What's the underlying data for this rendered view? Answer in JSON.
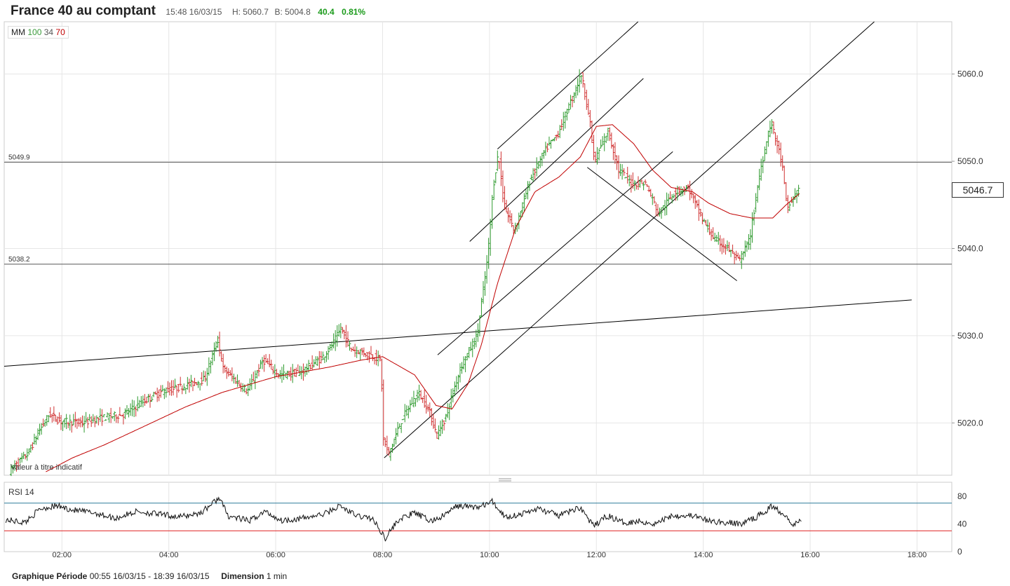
{
  "header": {
    "title": "France 40 au comptant",
    "datetime": "15:48 16/03/15",
    "high": "H: 5060.7",
    "low": "B: 5004.8",
    "change": "40.4",
    "change_pct": "0.81%"
  },
  "ma_legend": {
    "label": "MM",
    "p1": "100",
    "p2": "34",
    "p3": "70"
  },
  "disclaimer": "Valeur à titre indicatif",
  "rsi_label": "RSI  14",
  "current_price": "5046.7",
  "footer": {
    "period_label": "Graphique Période",
    "period_value": "00:55 16/03/15 - 18:39 16/03/15",
    "dimension_label": "Dimension",
    "dimension_value": "1 min"
  },
  "colors": {
    "up": "#2e9a2e",
    "down": "#d03030",
    "ma": "#c00000",
    "rsi_upper": "#2e7a9a",
    "rsi_lower": "#e02020"
  },
  "chart_data": [
    {
      "type": "candlestick",
      "x_ticks": [
        "02:00",
        "04:00",
        "06:00",
        "08:00",
        "10:00",
        "12:00",
        "14:00",
        "16:00",
        "18:00"
      ],
      "y_ticks": [
        "5020.0",
        "5030.0",
        "5040.0",
        "5050.0",
        "5060.0"
      ],
      "ylim": [
        5014,
        5066
      ],
      "xlim_hours": [
        0.92,
        18.65
      ],
      "horizontal_levels": [
        {
          "label": "5049.9",
          "value": 5049.9
        },
        {
          "label": "5038.2",
          "value": 5038.2
        }
      ],
      "trendlines": [
        {
          "x1": 0.92,
          "y1": 5026.5,
          "x2": 17.9,
          "y2": 5034.1
        },
        {
          "x1": 10.15,
          "y1": 5051.4,
          "x2": 12.78,
          "y2": 5066.0
        },
        {
          "x1": 9.63,
          "y1": 5040.8,
          "x2": 12.88,
          "y2": 5059.5
        },
        {
          "x1": 9.03,
          "y1": 5027.8,
          "x2": 13.43,
          "y2": 5051.1
        },
        {
          "x1": 8.03,
          "y1": 5016.0,
          "x2": 17.2,
          "y2": 5066.0
        },
        {
          "x1": 11.83,
          "y1": 5049.3,
          "x2": 14.63,
          "y2": 5036.3
        }
      ],
      "price_keypoints": [
        [
          1.05,
          5014.5
        ],
        [
          1.4,
          5016.5
        ],
        [
          1.6,
          5019.0
        ],
        [
          1.8,
          5021.0
        ],
        [
          2.0,
          5020.2
        ],
        [
          2.4,
          5020.0
        ],
        [
          2.8,
          5020.6
        ],
        [
          3.2,
          5021.0
        ],
        [
          3.6,
          5022.6
        ],
        [
          3.9,
          5023.6
        ],
        [
          4.3,
          5024.2
        ],
        [
          4.7,
          5025.0
        ],
        [
          4.95,
          5029.5
        ],
        [
          5.05,
          5026.2
        ],
        [
          5.5,
          5023.6
        ],
        [
          5.8,
          5027.2
        ],
        [
          6.1,
          5025.5
        ],
        [
          6.5,
          5025.8
        ],
        [
          6.9,
          5027.5
        ],
        [
          7.1,
          5029.0
        ],
        [
          7.25,
          5030.8
        ],
        [
          7.45,
          5028.5
        ],
        [
          7.8,
          5027.8
        ],
        [
          8.0,
          5027.2
        ],
        [
          8.05,
          5018.0
        ],
        [
          8.15,
          5016.5
        ],
        [
          8.4,
          5020.5
        ],
        [
          8.7,
          5023.5
        ],
        [
          8.9,
          5021.5
        ],
        [
          9.05,
          5018.5
        ],
        [
          9.2,
          5020.5
        ],
        [
          9.5,
          5026.5
        ],
        [
          9.8,
          5030.0
        ],
        [
          10.0,
          5039.0
        ],
        [
          10.1,
          5047.0
        ],
        [
          10.2,
          5051.0
        ],
        [
          10.3,
          5045.0
        ],
        [
          10.5,
          5042.0
        ],
        [
          10.8,
          5048.0
        ],
        [
          11.1,
          5051.5
        ],
        [
          11.3,
          5053.0
        ],
        [
          11.6,
          5057.5
        ],
        [
          11.75,
          5060.0
        ],
        [
          11.9,
          5055.0
        ],
        [
          12.0,
          5050.0
        ],
        [
          12.25,
          5053.5
        ],
        [
          12.45,
          5049.0
        ],
        [
          12.7,
          5047.5
        ],
        [
          12.95,
          5047.5
        ],
        [
          13.2,
          5044.0
        ],
        [
          13.5,
          5046.5
        ],
        [
          13.75,
          5047.0
        ],
        [
          14.0,
          5043.5
        ],
        [
          14.25,
          5041.0
        ],
        [
          14.5,
          5040.0
        ],
        [
          14.7,
          5038.5
        ],
        [
          14.9,
          5041.0
        ],
        [
          15.1,
          5049.0
        ],
        [
          15.3,
          5054.5
        ],
        [
          15.5,
          5050.0
        ],
        [
          15.6,
          5044.5
        ],
        [
          15.8,
          5046.7
        ]
      ],
      "ma_keypoints": [
        [
          1.7,
          5014.4
        ],
        [
          2.2,
          5016.0
        ],
        [
          2.8,
          5017.5
        ],
        [
          3.5,
          5019.5
        ],
        [
          4.3,
          5021.8
        ],
        [
          5.0,
          5023.5
        ],
        [
          6.0,
          5025.3
        ],
        [
          7.0,
          5026.4
        ],
        [
          7.6,
          5027.2
        ],
        [
          8.0,
          5027.6
        ],
        [
          8.6,
          5025.5
        ],
        [
          9.0,
          5022.0
        ],
        [
          9.3,
          5021.6
        ],
        [
          9.6,
          5024.5
        ],
        [
          9.85,
          5029.0
        ],
        [
          10.15,
          5036.0
        ],
        [
          10.5,
          5042.5
        ],
        [
          10.85,
          5046.5
        ],
        [
          11.3,
          5048.2
        ],
        [
          11.7,
          5050.5
        ],
        [
          12.0,
          5054.0
        ],
        [
          12.3,
          5054.2
        ],
        [
          12.7,
          5052.0
        ],
        [
          13.05,
          5049.0
        ],
        [
          13.4,
          5047.0
        ],
        [
          13.8,
          5046.5
        ],
        [
          14.1,
          5045.2
        ],
        [
          14.5,
          5044.0
        ],
        [
          14.9,
          5043.5
        ],
        [
          15.3,
          5043.5
        ],
        [
          15.55,
          5045.0
        ],
        [
          15.8,
          5046.3
        ]
      ]
    },
    {
      "type": "line",
      "name_label": "RSI 14",
      "y_ticks": [
        "80",
        "40",
        "0"
      ],
      "ylim": [
        0,
        100
      ],
      "reference_levels": [
        70,
        30
      ],
      "keypoints": [
        [
          0.95,
          46
        ],
        [
          1.3,
          42
        ],
        [
          1.6,
          62
        ],
        [
          1.9,
          66
        ],
        [
          2.2,
          60
        ],
        [
          2.6,
          56
        ],
        [
          3.0,
          48
        ],
        [
          3.4,
          58
        ],
        [
          3.8,
          54
        ],
        [
          4.2,
          50
        ],
        [
          4.6,
          56
        ],
        [
          4.95,
          78
        ],
        [
          5.1,
          52
        ],
        [
          5.5,
          44
        ],
        [
          5.8,
          58
        ],
        [
          6.1,
          45
        ],
        [
          6.5,
          48
        ],
        [
          6.9,
          54
        ],
        [
          7.2,
          66
        ],
        [
          7.5,
          52
        ],
        [
          7.8,
          48
        ],
        [
          8.05,
          20
        ],
        [
          8.3,
          46
        ],
        [
          8.6,
          56
        ],
        [
          8.9,
          44
        ],
        [
          9.1,
          50
        ],
        [
          9.4,
          66
        ],
        [
          9.8,
          64
        ],
        [
          10.05,
          72
        ],
        [
          10.3,
          50
        ],
        [
          10.6,
          54
        ],
        [
          10.9,
          62
        ],
        [
          11.3,
          52
        ],
        [
          11.7,
          64
        ],
        [
          11.95,
          36
        ],
        [
          12.2,
          52
        ],
        [
          12.5,
          42
        ],
        [
          12.8,
          44
        ],
        [
          13.1,
          40
        ],
        [
          13.4,
          52
        ],
        [
          13.8,
          52
        ],
        [
          14.1,
          44
        ],
        [
          14.4,
          42
        ],
        [
          14.7,
          40
        ],
        [
          15.0,
          50
        ],
        [
          15.3,
          66
        ],
        [
          15.55,
          52
        ],
        [
          15.7,
          38
        ],
        [
          15.85,
          48
        ]
      ]
    }
  ]
}
